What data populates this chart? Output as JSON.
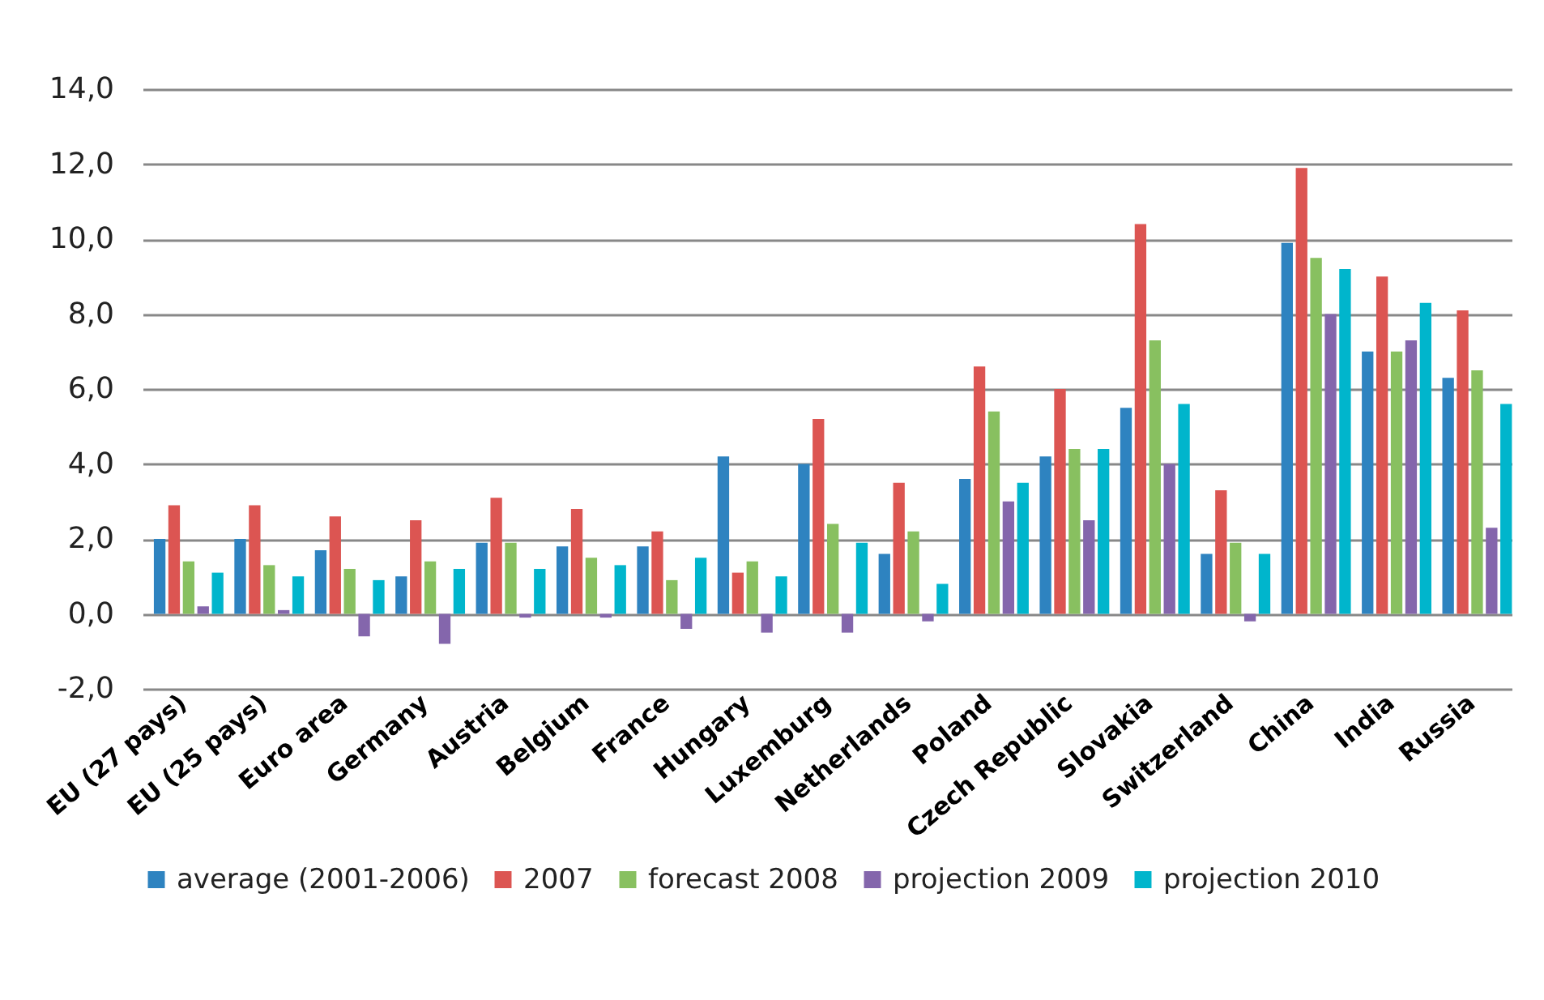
{
  "chart_data": {
    "type": "bar",
    "categories": [
      "EU (27 pays)",
      "EU (25 pays)",
      "Euro area",
      "Germany",
      "Austria",
      "Belgium",
      "France",
      "Hungary",
      "Luxemburg",
      "Netherlands",
      "Poland",
      "Czech Republic",
      "Slovakia",
      "Switzerland",
      "China",
      "India",
      "Russia"
    ],
    "series": [
      {
        "name": "average (2001-2006)",
        "color": "#2e83c0",
        "values": [
          2.0,
          2.0,
          1.7,
          1.0,
          1.9,
          1.8,
          1.8,
          4.2,
          4.0,
          1.6,
          3.6,
          4.2,
          5.5,
          1.6,
          9.9,
          7.0,
          6.3
        ]
      },
      {
        "name": "2007",
        "color": "#dc5552",
        "values": [
          2.9,
          2.9,
          2.6,
          2.5,
          3.1,
          2.8,
          2.2,
          1.1,
          5.2,
          3.5,
          6.6,
          6.0,
          10.4,
          3.3,
          11.9,
          9.0,
          8.1
        ]
      },
      {
        "name": "forecast 2008",
        "color": "#88c060",
        "values": [
          1.4,
          1.3,
          1.2,
          1.4,
          1.9,
          1.5,
          0.9,
          1.4,
          2.4,
          2.2,
          5.4,
          4.4,
          7.3,
          1.9,
          9.5,
          7.0,
          6.5
        ]
      },
      {
        "name": "projection 2009",
        "color": "#8466ac",
        "values": [
          0.2,
          0.1,
          -0.6,
          -0.8,
          -0.1,
          -0.1,
          -0.4,
          -0.5,
          -0.5,
          -0.2,
          3.0,
          2.5,
          4.0,
          -0.2,
          8.0,
          7.3,
          2.3
        ]
      },
      {
        "name": "projection 2010",
        "color": "#00b5cc",
        "values": [
          1.1,
          1.0,
          0.9,
          1.2,
          1.2,
          1.3,
          1.5,
          1.0,
          1.9,
          0.8,
          3.5,
          4.4,
          5.6,
          1.6,
          9.2,
          8.3,
          5.6
        ]
      }
    ],
    "ylim": [
      -2,
      14
    ],
    "yticks": [
      {
        "value": -2,
        "label": "-2,0"
      },
      {
        "value": 0,
        "label": "0,0"
      },
      {
        "value": 2,
        "label": "2,0"
      },
      {
        "value": 4,
        "label": "4,0"
      },
      {
        "value": 6,
        "label": "6,0"
      },
      {
        "value": 8,
        "label": "8,0"
      },
      {
        "value": 10,
        "label": "10,0"
      },
      {
        "value": 12,
        "label": "12,0"
      },
      {
        "value": 14,
        "label": "14,0"
      }
    ],
    "grid": "y",
    "legend": "bottom"
  }
}
